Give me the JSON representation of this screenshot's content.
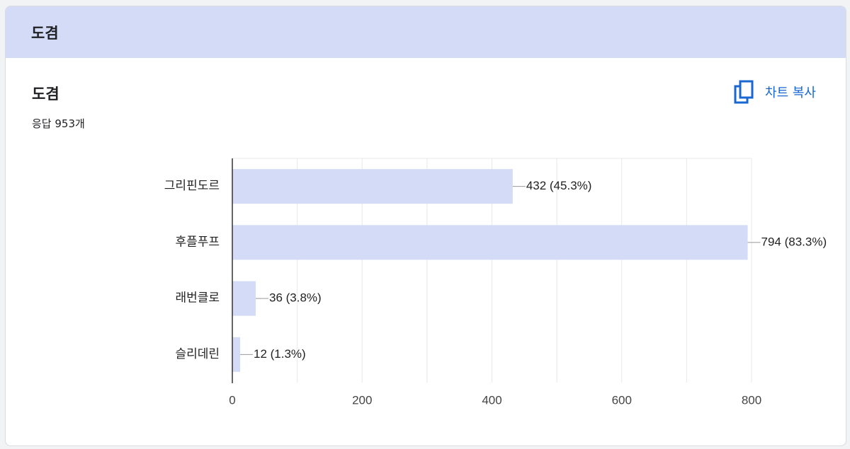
{
  "header": {
    "title": "도겸"
  },
  "question": {
    "title": "도겸",
    "response_count": "응답 953개"
  },
  "toolbar": {
    "copy_label": "차트 복사",
    "copy_icon": "copy-icon"
  },
  "colors": {
    "header_bg": "#d3dbf6",
    "bar": "#d3dbf6",
    "accent": "#1967d2",
    "grid": "#e8e8e8"
  },
  "chart_data": {
    "type": "bar",
    "orientation": "horizontal",
    "categories": [
      "그리핀도르",
      "후플푸프",
      "래번클로",
      "슬리데린"
    ],
    "values": [
      432,
      794,
      36,
      12
    ],
    "value_labels": [
      "432 (45.3%)",
      "794 (83.3%)",
      "36 (3.8%)",
      "12 (1.3%)"
    ],
    "xlim": [
      0,
      800
    ],
    "xticks": [
      "0",
      "200",
      "400",
      "600",
      "800"
    ],
    "grid": true,
    "legend": "none"
  }
}
